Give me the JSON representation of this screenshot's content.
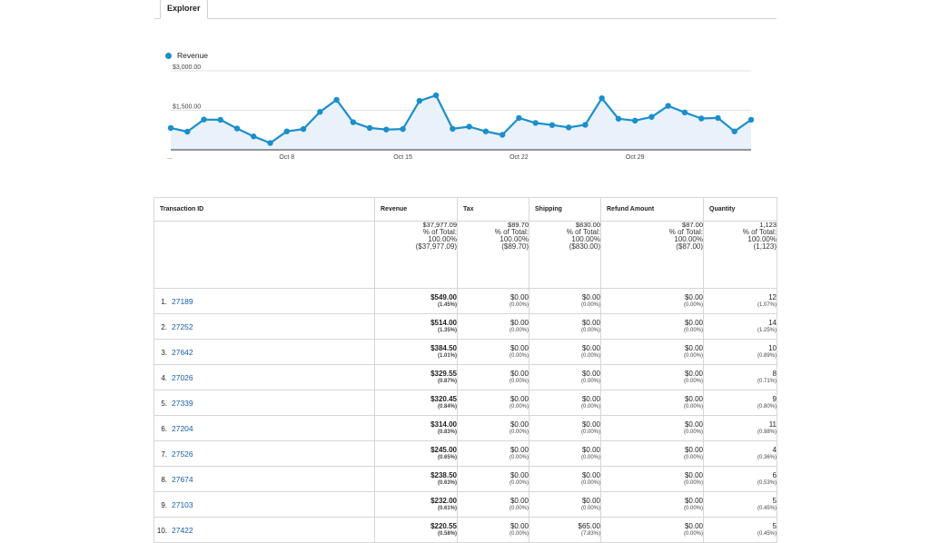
{
  "tabs": {
    "explorer": "Explorer"
  },
  "colors": {
    "series": "#1a8fcb",
    "area": "#e9f1fb",
    "link": "#1a5ea8"
  },
  "chart_data": {
    "type": "line",
    "title": "",
    "legend": "top-left",
    "ylim": [
      0,
      3000
    ],
    "y_ticks": [
      {
        "value": 3000,
        "label": "$3,000.00"
      },
      {
        "value": 1500,
        "label": "$1,500.00"
      }
    ],
    "x_ticks": [
      {
        "index": 0,
        "label": "..."
      },
      {
        "index": 7,
        "label": "Oct 8"
      },
      {
        "index": 14,
        "label": "Oct 15"
      },
      {
        "index": 21,
        "label": "Oct 22"
      },
      {
        "index": 28,
        "label": "Oct 29"
      }
    ],
    "series": [
      {
        "name": "Revenue",
        "values": [
          830,
          690,
          1150,
          1140,
          810,
          510,
          260,
          700,
          790,
          1440,
          1900,
          1050,
          830,
          770,
          790,
          1860,
          2070,
          800,
          880,
          700,
          570,
          1210,
          1020,
          940,
          850,
          950,
          1960,
          1180,
          1110,
          1250,
          1670,
          1420,
          1190,
          1210,
          700,
          1140
        ]
      }
    ],
    "grid": true
  },
  "table": {
    "headers": {
      "id": "Transaction ID",
      "revenue": "Revenue",
      "tax": "Tax",
      "shipping": "Shipping",
      "refund": "Refund Amount",
      "quantity": "Quantity"
    },
    "totals": {
      "revenue": {
        "value": "$37,977.09",
        "l1": "% of Total:",
        "l2": "100.00%",
        "l3": "($37,977.09)"
      },
      "tax": {
        "value": "$89.70",
        "l1": "% of Total:",
        "l2": "100.00%",
        "l3": "($89.70)"
      },
      "shipping": {
        "value": "$830.00",
        "l1": "% of Total:",
        "l2": "100.00%",
        "l3": "($830.00)"
      },
      "refund": {
        "value": "$87.00",
        "l1": "% of Total:",
        "l2": "100.00%",
        "l3": "($87.00)"
      },
      "quantity": {
        "value": "1,123",
        "l1": "% of Total:",
        "l2": "100.00%",
        "l3": "(1,123)"
      }
    },
    "rows": [
      {
        "rank": "1.",
        "id": "27189",
        "revenue": "$549.00",
        "revenue_pct": "(1.45%)",
        "tax": "$0.00",
        "tax_pct": "(0.00%)",
        "shipping": "$0.00",
        "shipping_pct": "(0.00%)",
        "refund": "$0.00",
        "refund_pct": "(0.00%)",
        "quantity": "12",
        "quantity_pct": "(1.07%)"
      },
      {
        "rank": "2.",
        "id": "27252",
        "revenue": "$514.00",
        "revenue_pct": "(1.35%)",
        "tax": "$0.00",
        "tax_pct": "(0.00%)",
        "shipping": "$0.00",
        "shipping_pct": "(0.00%)",
        "refund": "$0.00",
        "refund_pct": "(0.00%)",
        "quantity": "14",
        "quantity_pct": "(1.25%)"
      },
      {
        "rank": "3.",
        "id": "27642",
        "revenue": "$384.50",
        "revenue_pct": "(1.01%)",
        "tax": "$0.00",
        "tax_pct": "(0.00%)",
        "shipping": "$0.00",
        "shipping_pct": "(0.00%)",
        "refund": "$0.00",
        "refund_pct": "(0.00%)",
        "quantity": "10",
        "quantity_pct": "(0.89%)"
      },
      {
        "rank": "4.",
        "id": "27026",
        "revenue": "$329.55",
        "revenue_pct": "(0.87%)",
        "tax": "$0.00",
        "tax_pct": "(0.00%)",
        "shipping": "$0.00",
        "shipping_pct": "(0.00%)",
        "refund": "$0.00",
        "refund_pct": "(0.00%)",
        "quantity": "8",
        "quantity_pct": "(0.71%)"
      },
      {
        "rank": "5.",
        "id": "27339",
        "revenue": "$320.45",
        "revenue_pct": "(0.84%)",
        "tax": "$0.00",
        "tax_pct": "(0.00%)",
        "shipping": "$0.00",
        "shipping_pct": "(0.00%)",
        "refund": "$0.00",
        "refund_pct": "(0.00%)",
        "quantity": "9",
        "quantity_pct": "(0.80%)"
      },
      {
        "rank": "6.",
        "id": "27204",
        "revenue": "$314.00",
        "revenue_pct": "(0.83%)",
        "tax": "$0.00",
        "tax_pct": "(0.00%)",
        "shipping": "$0.00",
        "shipping_pct": "(0.00%)",
        "refund": "$0.00",
        "refund_pct": "(0.00%)",
        "quantity": "11",
        "quantity_pct": "(0.98%)"
      },
      {
        "rank": "7.",
        "id": "27526",
        "revenue": "$245.00",
        "revenue_pct": "(0.65%)",
        "tax": "$0.00",
        "tax_pct": "(0.00%)",
        "shipping": "$0.00",
        "shipping_pct": "(0.00%)",
        "refund": "$0.00",
        "refund_pct": "(0.00%)",
        "quantity": "4",
        "quantity_pct": "(0.36%)"
      },
      {
        "rank": "8.",
        "id": "27674",
        "revenue": "$238.50",
        "revenue_pct": "(0.63%)",
        "tax": "$0.00",
        "tax_pct": "(0.00%)",
        "shipping": "$0.00",
        "shipping_pct": "(0.00%)",
        "refund": "$0.00",
        "refund_pct": "(0.00%)",
        "quantity": "6",
        "quantity_pct": "(0.53%)"
      },
      {
        "rank": "9.",
        "id": "27103",
        "revenue": "$232.00",
        "revenue_pct": "(0.61%)",
        "tax": "$0.00",
        "tax_pct": "(0.00%)",
        "shipping": "$0.00",
        "shipping_pct": "(0.00%)",
        "refund": "$0.00",
        "refund_pct": "(0.00%)",
        "quantity": "5",
        "quantity_pct": "(0.45%)"
      },
      {
        "rank": "10.",
        "id": "27422",
        "revenue": "$220.55",
        "revenue_pct": "(0.58%)",
        "tax": "$0.00",
        "tax_pct": "(0.00%)",
        "shipping": "$65.00",
        "shipping_pct": "(7.83%)",
        "refund": "$0.00",
        "refund_pct": "(0.00%)",
        "quantity": "5",
        "quantity_pct": "(0.45%)"
      }
    ]
  }
}
